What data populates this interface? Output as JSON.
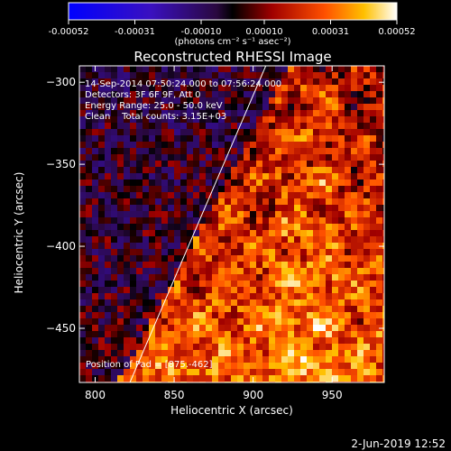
{
  "chart_data": {
    "type": "heatmap",
    "title": "Reconstructed RHESSI Image",
    "xlabel": "Heliocentric X (arcsec)",
    "ylabel": "Heliocentric Y (arcsec)",
    "xlim": [
      790,
      983
    ],
    "ylim": [
      -483,
      -290
    ],
    "x_ticks": [
      800,
      850,
      900,
      950
    ],
    "y_ticks": [
      -300,
      -350,
      -400,
      -450
    ],
    "colorbar": {
      "ticks": [
        "-0.00052",
        "-0.00031",
        "-0.00010",
        "0.00010",
        "0.00031",
        "0.00052"
      ],
      "tick_values": [
        -0.00052,
        -0.00031,
        -0.0001,
        0.0001,
        0.00031,
        0.00052
      ],
      "range": [
        -0.00052,
        0.00052
      ],
      "unit_label": "(photons cm⁻² s⁻¹ asec⁻²)"
    },
    "annotations": [
      "14-Sep-2014 07:50:24.000 to 07:56:24.000",
      "Detectors: 3F 6F 9F, Att 0",
      "Energy Range: 25.0 - 50.0 keV",
      "Clean    Total counts: 3.15E+03",
      "Position of Pad = [875.-462]"
    ],
    "limb_line": {
      "x": [
        822,
        908
      ],
      "y": [
        -483,
        -290
      ]
    },
    "footer": "2-Jun-2019 12:52",
    "colors": {
      "background": "#000000",
      "text": "#ffffff",
      "limb": "#ffffff"
    }
  }
}
